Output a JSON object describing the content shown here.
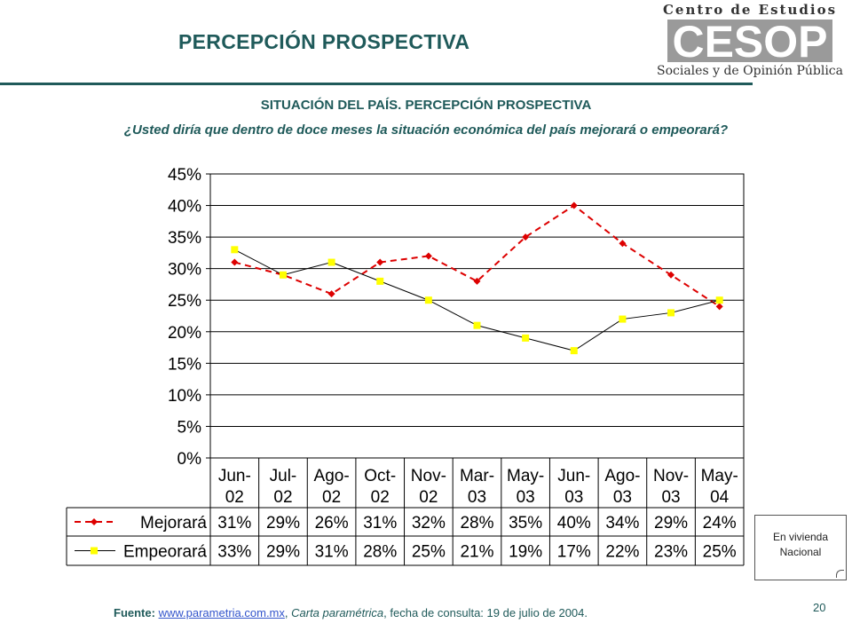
{
  "header": {
    "page_title": "PERCEPCIÓN PROSPECTIVA",
    "logo_line1": "Centro de Estudios",
    "logo_mark": "CESOP",
    "logo_line2": "Sociales y de Opinión Pública"
  },
  "subtitle": "SITUACIÓN DEL PAÍS. PERCEPCIÓN PROSPECTIVA",
  "question": "¿Usted diría que dentro de doce meses la situación económica del país mejorará o empeorará?",
  "chart_data": {
    "type": "line",
    "categories": [
      [
        "Jun-",
        "02"
      ],
      [
        "Jul-",
        "02"
      ],
      [
        "Ago-",
        "02"
      ],
      [
        "Oct-",
        "02"
      ],
      [
        "Nov-",
        "02"
      ],
      [
        "Mar-",
        "03"
      ],
      [
        "May-",
        "03"
      ],
      [
        "Jun-",
        "03"
      ],
      [
        "Ago-",
        "03"
      ],
      [
        "Nov-",
        "03"
      ],
      [
        "May-",
        "04"
      ]
    ],
    "yticks": [
      "0%",
      "5%",
      "10%",
      "15%",
      "20%",
      "25%",
      "30%",
      "35%",
      "40%",
      "45%"
    ],
    "ylim": [
      0,
      45
    ],
    "grid": true,
    "legend": "table-below",
    "series": [
      {
        "name": "Mejorará",
        "values": [
          31,
          29,
          26,
          31,
          32,
          28,
          35,
          40,
          34,
          29,
          24
        ],
        "labels": [
          "31%",
          "29%",
          "26%",
          "31%",
          "32%",
          "28%",
          "35%",
          "40%",
          "34%",
          "29%",
          "24%"
        ],
        "color": "#dd0000",
        "dash": true,
        "marker": "diamond",
        "marker_color": "#dd0000"
      },
      {
        "name": "Empeorará",
        "values": [
          33,
          29,
          31,
          28,
          25,
          21,
          19,
          17,
          22,
          23,
          25
        ],
        "labels": [
          "33%",
          "29%",
          "31%",
          "28%",
          "25%",
          "21%",
          "19%",
          "17%",
          "22%",
          "23%",
          "25%"
        ],
        "color": "#000000",
        "dash": false,
        "marker": "square",
        "marker_color": "#ffff00"
      }
    ]
  },
  "note": {
    "line1": "En vivienda",
    "line2": "Nacional"
  },
  "source": {
    "label": "Fuente:",
    "link": "www.parametria.com.mx",
    "publication": "Carta paramétrica",
    "rest": ", fecha de consulta: 19 de julio de 2004."
  },
  "page_number": "20"
}
